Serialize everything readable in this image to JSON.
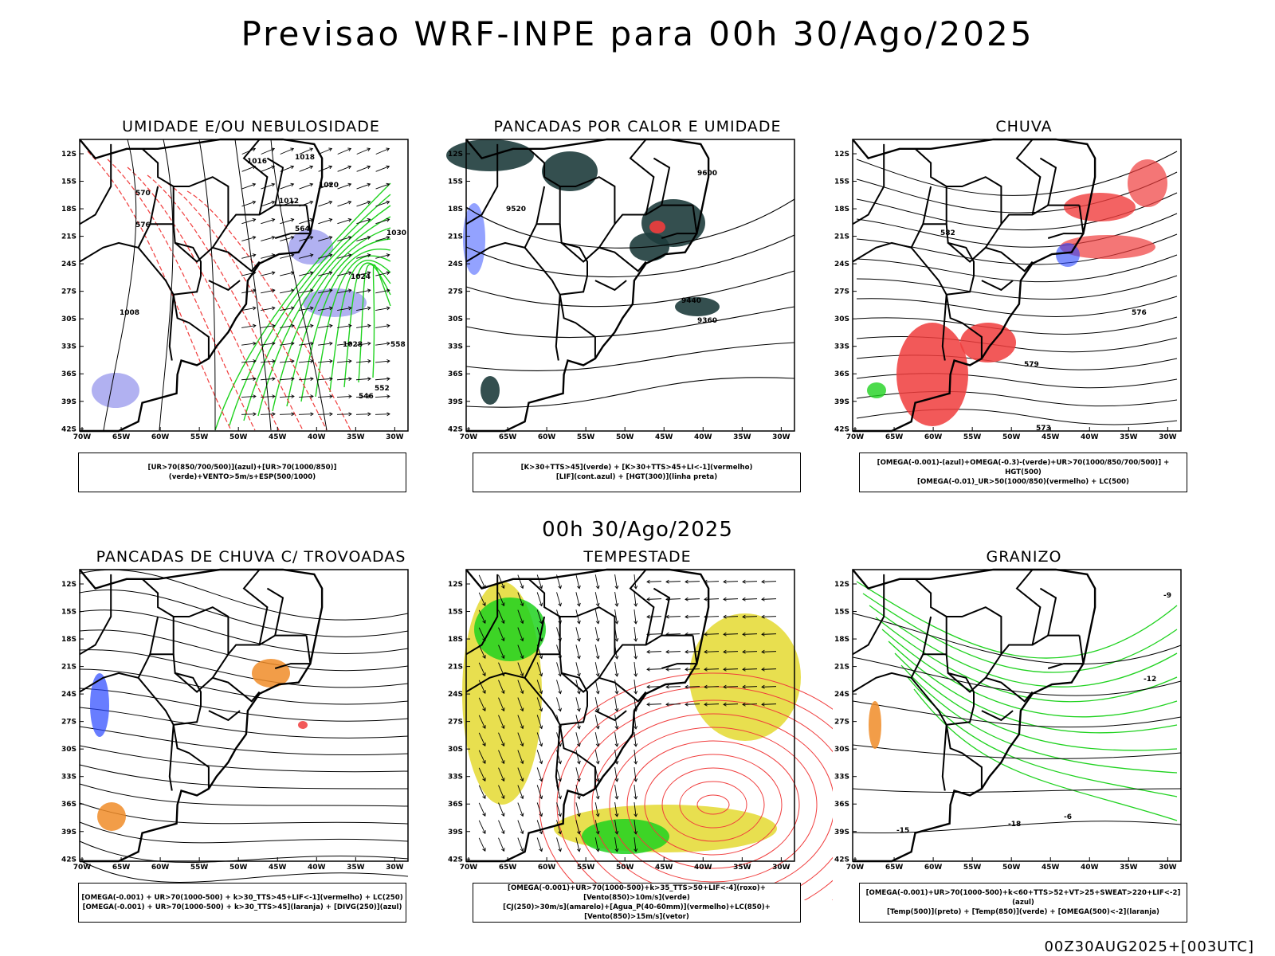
{
  "title": "Previsao WRF-INPE  para 00h 30/Ago/2025",
  "mid_time": "00h 30/Ago/2025",
  "footer": "00Z30AUG2025+[003UTC]",
  "axes": {
    "lat_labels": [
      "12S",
      "15S",
      "18S",
      "21S",
      "24S",
      "27S",
      "30S",
      "33S",
      "36S",
      "39S",
      "42S"
    ],
    "lon_labels": [
      "70W",
      "65W",
      "60W",
      "55W",
      "50W",
      "45W",
      "40W",
      "35W",
      "30W"
    ]
  },
  "panels": [
    {
      "title": "UMIDADE E/OU NEBULOSIDADE",
      "legend": [
        "[UR>70(850/700/500)](azul)+[UR>70(1000/850)](verde)+VENTO>5m/s+ESP(500/1000)"
      ],
      "contour_labels": [
        "1016",
        "1012",
        "1020",
        "1024",
        "1028",
        "1008",
        "570",
        "576",
        "564",
        "558",
        "552",
        "546",
        "1030",
        "1018"
      ]
    },
    {
      "title": "PANCADAS POR CALOR E UMIDADE",
      "legend": [
        "[K>30+TTS>45](verde) + [K>30+TTS>45+LI<-1](vermelho)",
        "[LIF](cont.azul) + [HGT(300)](linha preta)"
      ],
      "contour_labels": [
        "9600",
        "9520",
        "9440",
        "9360"
      ]
    },
    {
      "title": "CHUVA",
      "legend": [
        "[OMEGA(-0.001)-(azul)+OMEGA(-0.3)-(verde)+UR>70(1000/850/700/500)] + HGT(500)",
        "[OMEGA(-0.01)_UR>50(1000/850)(vermelho) + LC(500)"
      ],
      "contour_labels": [
        "582",
        "576",
        "573",
        "579"
      ]
    },
    {
      "title": "PANCADAS DE CHUVA C/ TROVOADAS",
      "legend": [
        "[OMEGA(-0.001) + UR>70(1000-500) + k>30_TTS>45+LIF<-1](vermelho) + LC(250)",
        "[OMEGA(-0.001) + UR>70(1000-500) + k>30_TTS>45](laranja) + [DIVG(250)](azul)"
      ],
      "contour_labels": []
    },
    {
      "title": "TEMPESTADE",
      "legend": [
        "[OMEGA(-0.001)+UR>70(1000-500)+k>35_TTS>50+LIF<-4](roxo)+[Vento(850)>10m/s](verde)",
        "[CJ(250)>30m/s](amarelo)+[Agua_P(40-60mm)](vermelho)+LC(850)+[Vento(850)>15m/s](vetor)"
      ],
      "contour_labels": []
    },
    {
      "title": "GRANIZO",
      "legend": [
        "[OMEGA(-0.001)+UR>70(1000-500)+k<60+TTS>52+VT>25+SWEAT>220+LIF<-2](azul)",
        "[Temp(500)](preto) + [Temp(850)](verde) + [OMEGA(500)<-2](laranja)"
      ],
      "contour_labels": [
        "-12",
        "-15",
        "-18",
        "-6",
        "-9"
      ]
    }
  ],
  "colors": {
    "green": "#1fd21f",
    "red": "#f03c3c",
    "blue": "#2846ff",
    "lavender": "#a8a8f0",
    "darkteal": "#1e3c3c",
    "yellow": "#e6dc3c",
    "orange": "#f08c28"
  }
}
